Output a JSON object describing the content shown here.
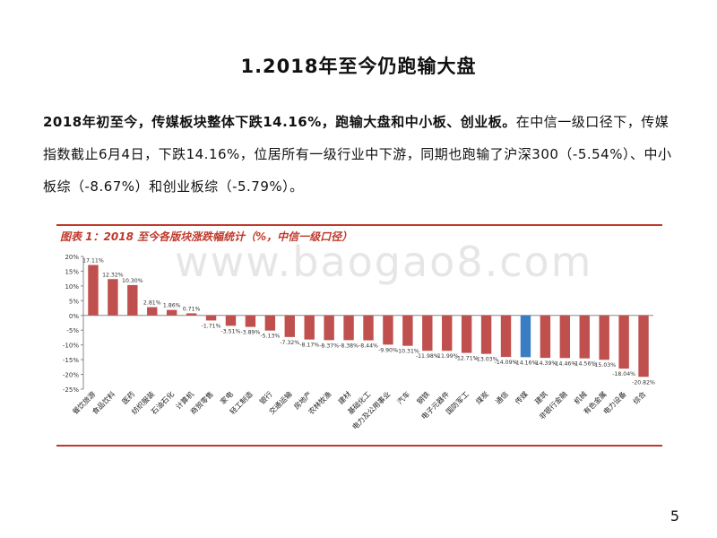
{
  "slide": {
    "title": "1.2018年至今仍跑输大盘",
    "para_bold": "2018年初至今，传媒板块整体下跌14.16%，跑输大盘和中小板、创业板。",
    "para_rest": "在中信一级口径下，传媒指数截止6月4日，下跌14.16%，位居所有一级行业中下游，同期也跑输了沪深300（-5.54%）、中小板综（-8.67%）和创业板综（-5.79%）。",
    "page_number": "5"
  },
  "figure": {
    "caption": "图表 1：2018 至今各版块涨跌幅统计（%，中信一级口径）",
    "watermark": "www.baogao8.com"
  },
  "chart_data": {
    "type": "bar",
    "title": "图表 1：2018 至今各版块涨跌幅统计（%，中信一级口径）",
    "xlabel": "",
    "ylabel": "",
    "ylim": [
      -25,
      20
    ],
    "yticks": [
      "20%",
      "15%",
      "10%",
      "5%",
      "0%",
      "-5%",
      "-10%",
      "-15%",
      "-20%",
      "-25%"
    ],
    "ytick_values": [
      20,
      15,
      10,
      5,
      0,
      -5,
      -10,
      -15,
      -20,
      -25
    ],
    "categories": [
      "餐饮旅游",
      "食品饮料",
      "医药",
      "纺织服装",
      "石油石化",
      "计算机",
      "商贸零售",
      "家电",
      "轻工制造",
      "银行",
      "交通运输",
      "房地产",
      "农林牧渔",
      "建材",
      "基础化工",
      "电力及公用事业",
      "汽车",
      "钢铁",
      "电子元器件",
      "国防军工",
      "煤炭",
      "通信",
      "传媒",
      "建筑",
      "非银行金融",
      "机械",
      "有色金属",
      "电力设备",
      "综合"
    ],
    "values": [
      17.11,
      12.32,
      10.3,
      2.81,
      1.86,
      0.71,
      -1.71,
      -3.51,
      -3.89,
      -5.13,
      -7.32,
      -8.17,
      -8.37,
      -8.38,
      -8.44,
      -9.9,
      -10.31,
      -11.98,
      -11.99,
      -12.71,
      -13.03,
      -14.09,
      -14.16,
      -14.39,
      -14.46,
      -14.56,
      -15.03,
      -18.04,
      -20.82
    ],
    "data_labels": [
      "17.11%",
      "12.32%",
      "10.30%",
      "2.81%",
      "1.86%",
      "0.71%",
      "-1.71%",
      "-3.51%",
      "-3.89%",
      "-5.13%",
      "-7.32%",
      "-8.17%",
      "-8.37%",
      "-8.38%",
      "-8.44%",
      "-9.90%",
      "-10.31%",
      "-11.98%",
      "-11.99%",
      "-12.71%",
      "-13.03%",
      "-14.09%",
      "-14.16%",
      "-14.39%",
      "-14.46%",
      "-14.56%",
      "-15.03%",
      "-18.04%",
      "-20.82%"
    ],
    "highlight_category": "传媒",
    "colors": {
      "bar": "#c0504d",
      "highlight": "#3a7dc4",
      "axis": "#888888",
      "caption": "#c0392b"
    },
    "grid": false
  }
}
